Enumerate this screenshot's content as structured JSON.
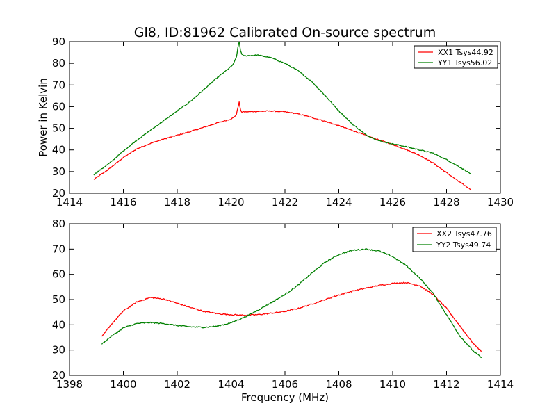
{
  "figure": {
    "title": "Gl8, ID:81962 Calibrated On-source spectrum",
    "ylabel": "Power in Kelvin",
    "xlabel": "Frequency (MHz)"
  },
  "chart_data": [
    {
      "type": "line",
      "title": "Gl8, ID:81962 Calibrated On-source spectrum",
      "xlabel": "",
      "ylabel": "Power in Kelvin",
      "xlim": [
        1414,
        1430
      ],
      "ylim": [
        20,
        90
      ],
      "xticks": [
        1414,
        1416,
        1418,
        1420,
        1422,
        1424,
        1426,
        1428,
        1430
      ],
      "yticks": [
        20,
        30,
        40,
        50,
        60,
        70,
        80,
        90
      ],
      "grid": false,
      "legend": "top-right",
      "series": [
        {
          "name": "XX1 Tsys44.92",
          "color": "#ff0000",
          "x": [
            1414.9,
            1415.5,
            1416.0,
            1416.5,
            1417.0,
            1417.5,
            1418.0,
            1418.5,
            1419.0,
            1419.5,
            1420.0,
            1420.1,
            1420.2,
            1420.25,
            1420.3,
            1420.35,
            1420.4,
            1420.5,
            1421.0,
            1421.5,
            1422.0,
            1422.5,
            1423.0,
            1423.5,
            1424.0,
            1424.5,
            1425.0,
            1425.5,
            1426.0,
            1426.5,
            1427.0,
            1427.5,
            1428.0,
            1428.5,
            1428.9
          ],
          "values": [
            26.3,
            31.5,
            36.5,
            40.5,
            43.0,
            45.0,
            46.8,
            48.5,
            50.5,
            52.5,
            54.3,
            55.0,
            56.5,
            59.5,
            62.0,
            58.5,
            57.5,
            57.6,
            57.8,
            58.0,
            57.6,
            56.6,
            55.0,
            53.2,
            51.2,
            49.0,
            46.7,
            44.6,
            42.5,
            40.2,
            37.5,
            34.0,
            29.5,
            25.0,
            21.7
          ]
        },
        {
          "name": "YY1 Tsys56.02",
          "color": "#008000",
          "x": [
            1414.9,
            1415.5,
            1416.0,
            1416.5,
            1417.0,
            1417.5,
            1418.0,
            1418.5,
            1419.0,
            1419.5,
            1420.0,
            1420.1,
            1420.2,
            1420.25,
            1420.3,
            1420.35,
            1420.4,
            1420.5,
            1421.0,
            1421.5,
            1422.0,
            1422.5,
            1423.0,
            1423.5,
            1424.0,
            1424.5,
            1425.0,
            1425.5,
            1426.0,
            1426.5,
            1427.0,
            1427.5,
            1428.0,
            1428.5,
            1428.9
          ],
          "values": [
            28.6,
            34.0,
            39.5,
            44.5,
            49.0,
            53.5,
            58.0,
            62.5,
            68.0,
            73.5,
            78.5,
            80.0,
            83.0,
            87.0,
            90.0,
            86.0,
            84.0,
            83.5,
            83.8,
            82.5,
            80.0,
            76.5,
            71.5,
            65.0,
            58.0,
            52.0,
            47.0,
            44.2,
            42.8,
            41.5,
            40.0,
            38.5,
            35.5,
            32.0,
            29.0
          ]
        }
      ]
    },
    {
      "type": "line",
      "title": "",
      "xlabel": "Frequency (MHz)",
      "ylabel": "",
      "xlim": [
        1398,
        1414
      ],
      "ylim": [
        20,
        80
      ],
      "xticks": [
        1398,
        1400,
        1402,
        1404,
        1406,
        1408,
        1410,
        1412,
        1414
      ],
      "yticks": [
        20,
        30,
        40,
        50,
        60,
        70,
        80
      ],
      "grid": false,
      "legend": "top-right",
      "series": [
        {
          "name": "XX2 Tsys47.76",
          "color": "#ff0000",
          "x": [
            1399.2,
            1399.5,
            1400.0,
            1400.5,
            1401.0,
            1401.5,
            1402.0,
            1402.5,
            1403.0,
            1403.5,
            1404.0,
            1404.5,
            1405.0,
            1405.5,
            1406.0,
            1406.5,
            1407.0,
            1407.5,
            1408.0,
            1408.5,
            1409.0,
            1409.5,
            1410.0,
            1410.5,
            1411.0,
            1411.5,
            1412.0,
            1412.5,
            1413.0,
            1413.3
          ],
          "values": [
            35.2,
            39.5,
            45.5,
            49.0,
            50.8,
            50.2,
            48.5,
            46.8,
            45.3,
            44.4,
            44.0,
            43.8,
            44.0,
            44.6,
            45.3,
            46.5,
            48.2,
            50.0,
            51.8,
            53.3,
            54.5,
            55.6,
            56.4,
            56.7,
            55.5,
            52.0,
            46.5,
            39.5,
            32.5,
            29.5
          ]
        },
        {
          "name": "YY2 Tsys49.74",
          "color": "#008000",
          "x": [
            1399.2,
            1399.5,
            1400.0,
            1400.5,
            1401.0,
            1401.5,
            1402.0,
            1402.5,
            1403.0,
            1403.5,
            1404.0,
            1404.5,
            1405.0,
            1405.5,
            1406.0,
            1406.5,
            1407.0,
            1407.5,
            1408.0,
            1408.5,
            1409.0,
            1409.5,
            1410.0,
            1410.5,
            1411.0,
            1411.5,
            1412.0,
            1412.5,
            1413.0,
            1413.3
          ],
          "values": [
            32.3,
            35.0,
            38.8,
            40.5,
            40.9,
            40.5,
            39.7,
            39.2,
            39.0,
            39.5,
            40.8,
            43.0,
            45.8,
            48.8,
            52.0,
            55.8,
            60.5,
            64.8,
            67.8,
            69.5,
            70.0,
            69.2,
            67.0,
            63.5,
            58.5,
            52.5,
            44.0,
            35.5,
            29.5,
            27.0
          ]
        }
      ]
    }
  ]
}
